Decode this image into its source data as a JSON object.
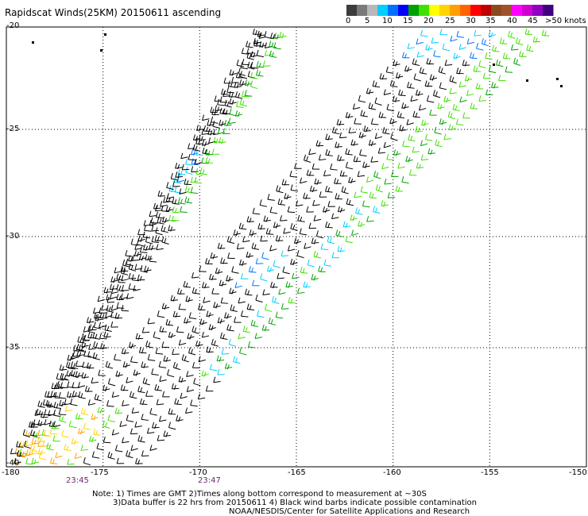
{
  "title": "Rapidscat Winds(25KM) 20150611 ascending",
  "legend": {
    "colors": [
      "#3c3c3c",
      "#7a7a7a",
      "#b8b8b8",
      "#00cfff",
      "#0070ff",
      "#0000ff",
      "#00a000",
      "#40e000",
      "#ffff00",
      "#ffd400",
      "#ffa000",
      "#ff6400",
      "#ff0000",
      "#c00000",
      "#8a4a20",
      "#a0522d",
      "#ff00ff",
      "#d000d0",
      "#9000c0",
      "#400080"
    ],
    "labels": [
      "0",
      "5",
      "10",
      "15",
      "20",
      "25",
      "30",
      "35",
      "40",
      "45",
      ">50 knots"
    ]
  },
  "axes": {
    "lat_labels": [
      "-20",
      "-25",
      "-30",
      "-35",
      "-40"
    ],
    "lon_labels": [
      "-180",
      "-175",
      "-170",
      "-165",
      "-160",
      "-155",
      "-150"
    ]
  },
  "times": [
    "23:45",
    "23:47"
  ],
  "notes": [
    "Note: 1) Times are GMT  2)Times along bottom correspond to measurement at ~30S",
    "3)Data buffer is 22 hrs from 20150611  4) Black wind barbs indicate possible contamination",
    "NOAA/NESDIS/Center for Satellite Applications and Research"
  ]
}
